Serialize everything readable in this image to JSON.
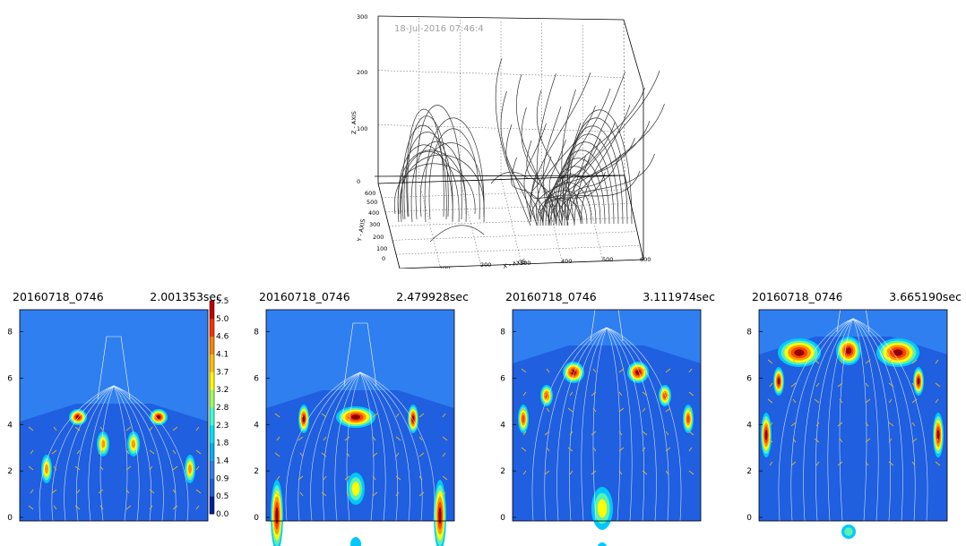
{
  "chart_data": [
    {
      "type": "line",
      "timestamp": "18-Jul-2016 07:46:4",
      "xlabel": "X - AXIS",
      "ylabel": "Y - AXIS",
      "zlabel": "Z - AXIS",
      "x_ticks": [
        "0",
        "100",
        "200",
        "300",
        "400",
        "500",
        "600"
      ],
      "y_ticks": [
        "0",
        "100",
        "200",
        "300",
        "400",
        "500",
        "600"
      ],
      "z_ticks": [
        "0",
        "100",
        "200",
        "300"
      ],
      "grid": true
    },
    {
      "type": "heatmap",
      "title_left": "20160718_0746",
      "title_right": "2.001353sec",
      "y_ticks": [
        "0",
        "2",
        "4",
        "6",
        "8"
      ],
      "colorbar_ticks": [
        "0.0",
        "0.5",
        "0.9",
        "1.4",
        "1.8",
        "2.3",
        "2.8",
        "3.2",
        "3.7",
        "4.1",
        "4.6",
        "5.0",
        "5.5"
      ]
    },
    {
      "type": "heatmap",
      "title_left": "20160718_0746",
      "title_right": "2.479928sec",
      "y_ticks": [
        "0",
        "2",
        "4",
        "6",
        "8"
      ]
    },
    {
      "type": "heatmap",
      "title_left": "20160718_0746",
      "title_right": "3.111974sec",
      "y_ticks": [
        "0",
        "2",
        "4",
        "6",
        "8"
      ]
    },
    {
      "type": "heatmap",
      "title_left": "20160718_0746",
      "title_right": "3.665190sec",
      "y_ticks": [
        "0",
        "2",
        "4",
        "6",
        "8"
      ]
    }
  ],
  "colors": {
    "background": "#2f7ff0",
    "mid": "#00c8ff",
    "high": "#ffff00",
    "peak": "#ff4000",
    "max": "#900000",
    "contour": "#ffffff",
    "arrow": "#e8b820"
  }
}
